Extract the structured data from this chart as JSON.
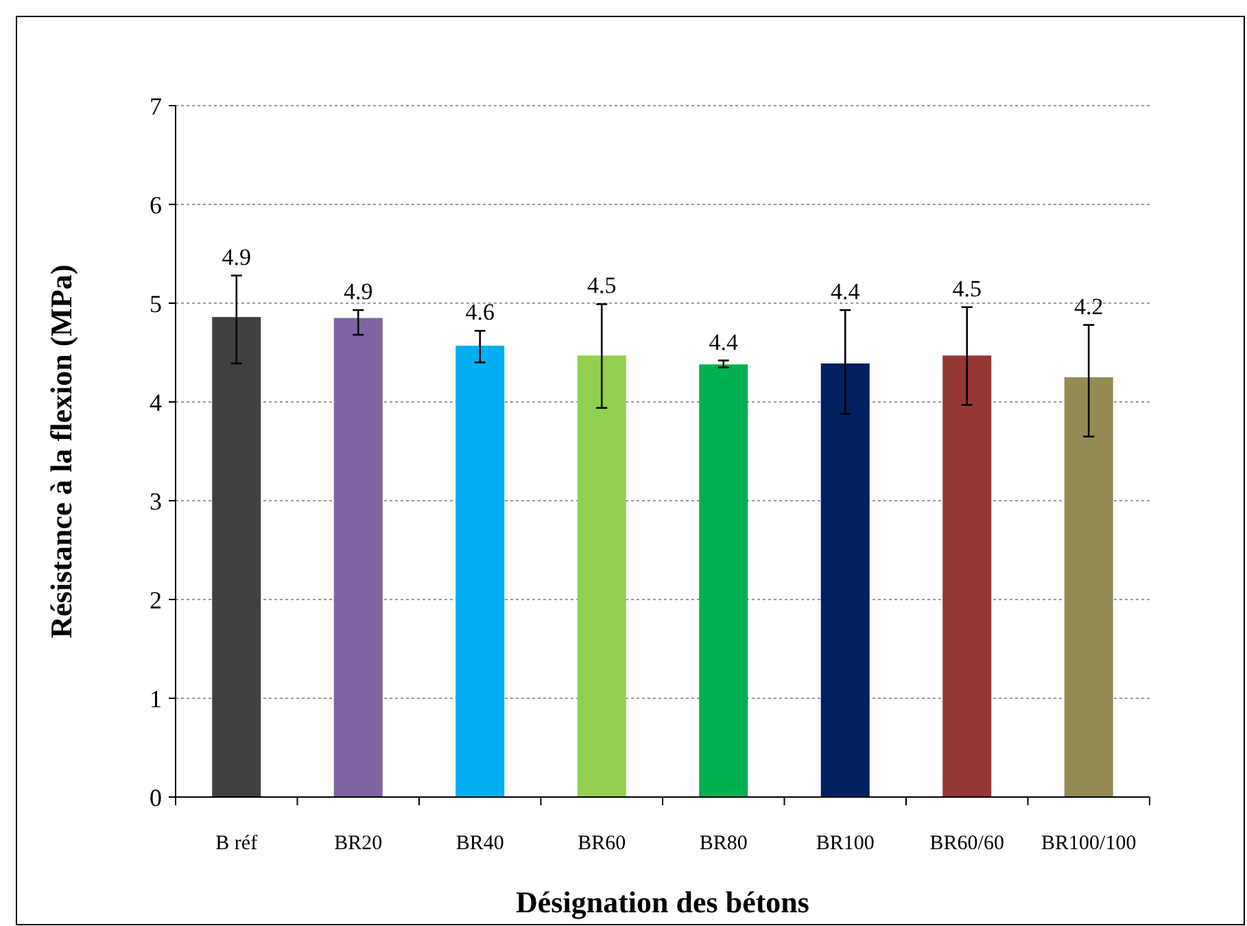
{
  "chart_data": {
    "type": "bar",
    "xlabel": "Désignation des bétons",
    "ylabel": "Résistance à la flexion (MPa)",
    "categories": [
      "B réf",
      "BR20",
      "BR40",
      "BR60",
      "BR80",
      "BR100",
      "BR60/60",
      "BR100/100"
    ],
    "values": [
      4.86,
      4.85,
      4.57,
      4.47,
      4.38,
      4.39,
      4.47,
      4.25
    ],
    "errors": [
      [
        4.39,
        5.28
      ],
      [
        4.68,
        4.93
      ],
      [
        4.4,
        4.72
      ],
      [
        3.94,
        4.99
      ],
      [
        4.35,
        4.42
      ],
      [
        3.88,
        4.93
      ],
      [
        3.97,
        4.96
      ],
      [
        3.65,
        4.78
      ]
    ],
    "value_labels": [
      "4.9",
      "4.9",
      "4.6",
      "4.5",
      "4.4",
      "4.4",
      "4.5",
      "4.2"
    ],
    "colors": [
      "#404040",
      "#8064a2",
      "#00b0f0",
      "#92d050",
      "#00b050",
      "#002060",
      "#953735",
      "#948a54"
    ],
    "ylim": [
      0,
      7
    ],
    "yticks": [
      0,
      1,
      2,
      3,
      4,
      5,
      6,
      7
    ],
    "grid": "y"
  }
}
